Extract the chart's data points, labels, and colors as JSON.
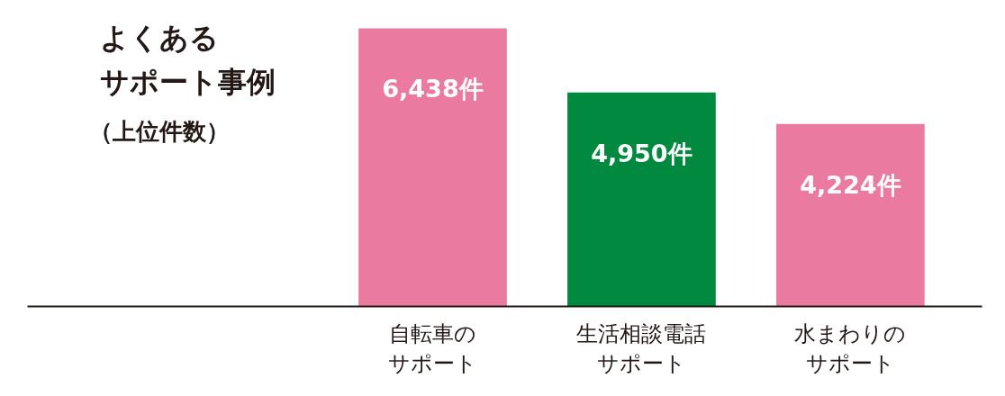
{
  "chart_data": {
    "type": "bar",
    "title": "よくあるサポート事例",
    "subtitle": "（上位件数）",
    "categories": [
      "自転車のサポート",
      "生活相談電話サポート",
      "水まわりのサポート"
    ],
    "values": [
      6438,
      4950,
      4224
    ],
    "colors": [
      "#eb7aa0",
      "#00893f",
      "#eb7aa0"
    ],
    "value_labels": [
      "6,438件",
      "4,950件",
      "4,224件"
    ],
    "tick_labels": "x"
  }
}
